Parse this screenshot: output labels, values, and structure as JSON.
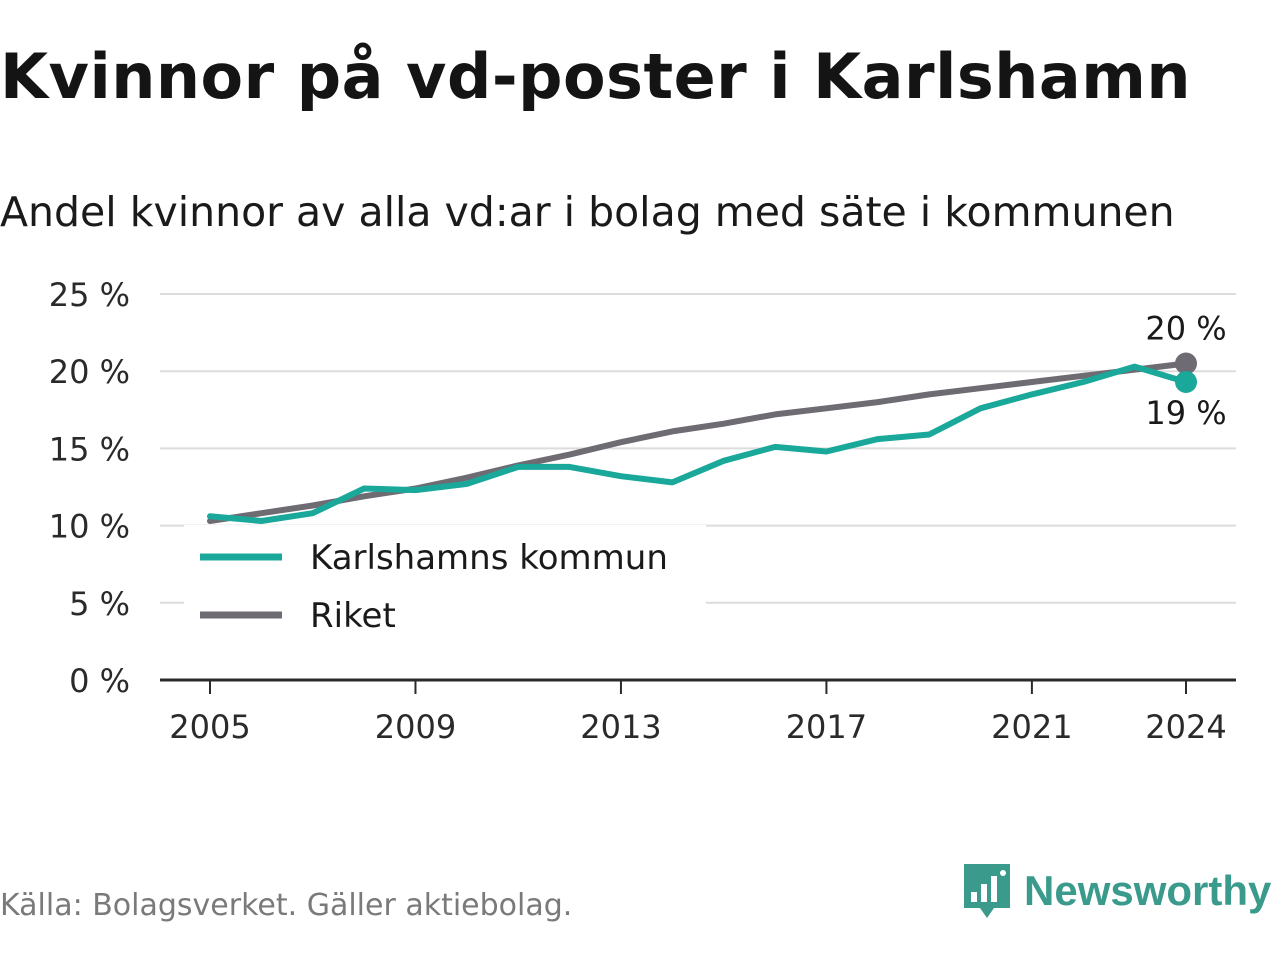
{
  "title": "Kvinnor på vd-poster i Karlshamn",
  "subtitle": "Andel kvinnor av alla vd:ar i bolag med säte i kommunen",
  "source": "Källa: Bolagsverket. Gäller aktiebolag.",
  "brand": {
    "name": "Newsworthy",
    "color": "#3a9a8c"
  },
  "chart_data": {
    "type": "line",
    "ylim": [
      0,
      25
    ],
    "yticks": [
      0,
      5,
      10,
      15,
      20,
      25
    ],
    "ytick_labels": [
      "0 %",
      "5 %",
      "10 %",
      "15 %",
      "20 %",
      "25 %"
    ],
    "xlim": [
      2005,
      2024
    ],
    "xticks": [
      2005,
      2009,
      2013,
      2017,
      2021,
      2024
    ],
    "xtick_labels": [
      "2005",
      "2009",
      "2013",
      "2017",
      "2021",
      "2024"
    ],
    "x": [
      2005,
      2006,
      2007,
      2008,
      2009,
      2010,
      2011,
      2012,
      2013,
      2014,
      2015,
      2016,
      2017,
      2018,
      2019,
      2020,
      2021,
      2022,
      2023,
      2024
    ],
    "series": [
      {
        "name": "Karlshamns kommun",
        "color": "#1aa89a",
        "values": [
          10.6,
          10.3,
          10.8,
          12.4,
          12.3,
          12.7,
          13.8,
          13.8,
          13.2,
          12.8,
          14.2,
          15.1,
          14.8,
          15.6,
          15.9,
          17.6,
          18.5,
          19.3,
          20.3,
          19.3
        ]
      },
      {
        "name": "Riket",
        "color": "#6e6b73",
        "values": [
          10.3,
          10.8,
          11.3,
          11.9,
          12.4,
          13.1,
          13.9,
          14.6,
          15.4,
          16.1,
          16.6,
          17.2,
          17.6,
          18.0,
          18.5,
          18.9,
          19.3,
          19.7,
          20.1,
          20.5
        ]
      }
    ],
    "end_labels": [
      {
        "series": "Riket",
        "text": "20 %",
        "position": "above"
      },
      {
        "series": "Karlshamns kommun",
        "text": "19 %",
        "position": "below"
      }
    ],
    "legend": {
      "position": "bottom-left",
      "entries": [
        "Karlshamns kommun",
        "Riket"
      ]
    }
  }
}
